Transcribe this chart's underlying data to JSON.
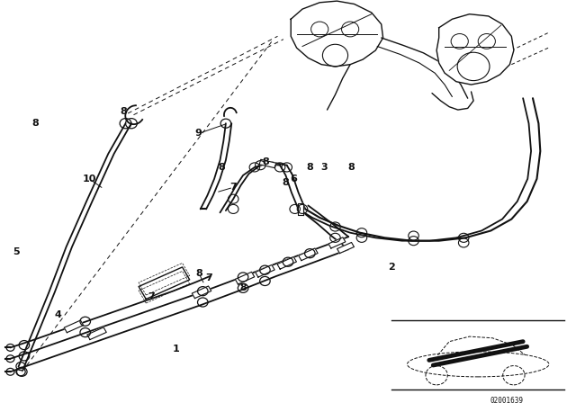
{
  "bg_color": "#ffffff",
  "line_color": "#111111",
  "diagram_id": "02001639",
  "pipe_lw": 1.3,
  "label_fs": 8,
  "labels": [
    [
      "1",
      3.05,
      1.08
    ],
    [
      "2",
      6.8,
      2.7
    ],
    [
      "3",
      5.62,
      4.68
    ],
    [
      "4",
      1.0,
      1.75
    ],
    [
      "5",
      0.28,
      3.0
    ],
    [
      "6",
      5.1,
      4.45
    ],
    [
      "7",
      4.05,
      4.28
    ],
    [
      "7",
      3.62,
      2.48
    ],
    [
      "7",
      2.62,
      2.1
    ],
    [
      "8",
      0.62,
      5.55
    ],
    [
      "8",
      2.15,
      5.78
    ],
    [
      "8",
      3.85,
      4.68
    ],
    [
      "8",
      4.62,
      4.78
    ],
    [
      "8",
      4.95,
      4.38
    ],
    [
      "8",
      5.38,
      4.68
    ],
    [
      "8",
      6.1,
      4.68
    ],
    [
      "8",
      3.45,
      2.58
    ],
    [
      "8",
      4.22,
      2.28
    ],
    [
      "9",
      3.45,
      5.35
    ],
    [
      "10",
      1.55,
      4.45
    ]
  ]
}
